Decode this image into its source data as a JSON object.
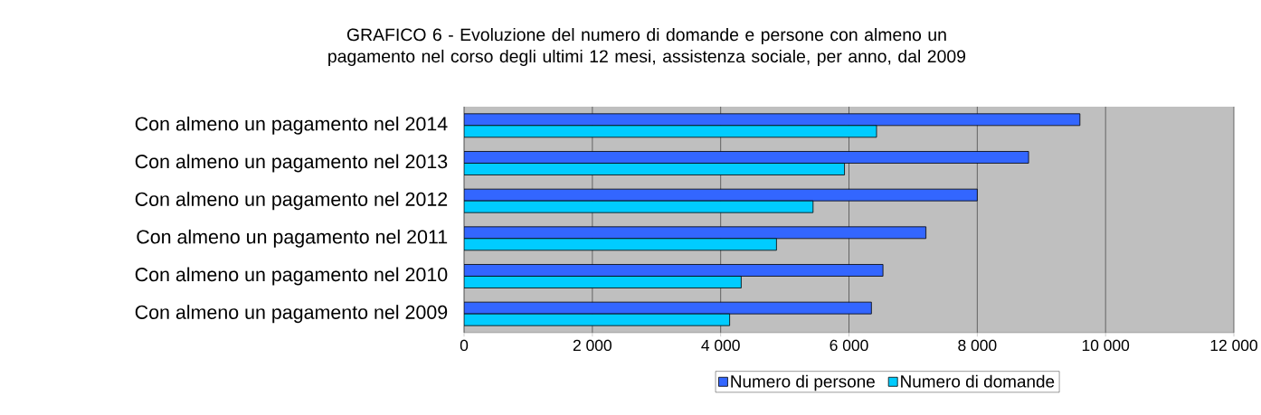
{
  "chart_data": {
    "type": "bar",
    "orientation": "horizontal",
    "title": "GRAFICO 6 - Evoluzione del numero di domande e persone con almeno un pagamento nel corso degli ultimi 12 mesi, assistenza sociale, per anno, dal 2009",
    "categories": [
      "Con almeno un pagamento nel 2014",
      "Con almeno un pagamento nel 2013",
      "Con almeno un pagamento nel 2012",
      "Con almeno un pagamento nel 2011",
      "Con almeno un pagamento nel 2010",
      "Con almeno un pagamento nel 2009"
    ],
    "series": [
      {
        "name": "Numero di persone",
        "color": "#3366ff",
        "values": [
          9600,
          8800,
          8000,
          7200,
          6530,
          6350
        ]
      },
      {
        "name": "Numero di domande",
        "color": "#00ccff",
        "values": [
          6430,
          5930,
          5440,
          4870,
          4320,
          4140
        ]
      }
    ],
    "xlim": [
      0,
      12000
    ],
    "xticks": [
      0,
      {
        "value": 2000,
        "label": "2 000"
      },
      {
        "value": 4000,
        "label": "4 000"
      },
      {
        "value": 6000,
        "label": "6 000"
      },
      {
        "value": 8000,
        "label": "8 000"
      },
      {
        "value": 10000,
        "label": "10 000"
      },
      {
        "value": 12000,
        "label": "12 000"
      }
    ],
    "grid": "x",
    "legend": "bottom"
  }
}
